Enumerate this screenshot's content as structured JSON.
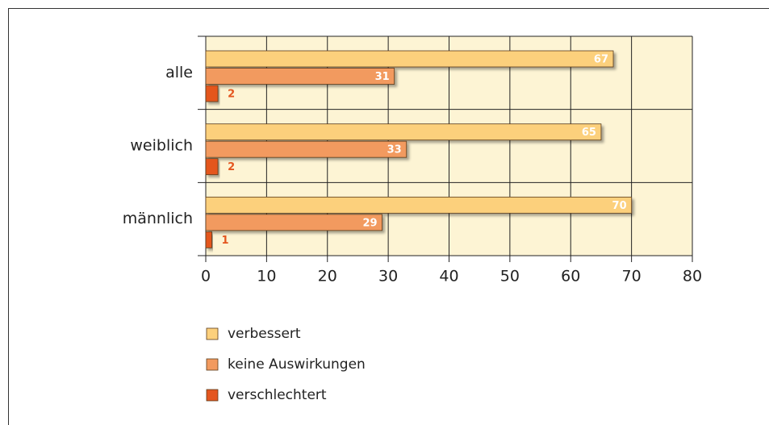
{
  "chart_data": {
    "type": "bar",
    "orientation": "horizontal",
    "categories": [
      "alle",
      "weiblich",
      "männlich"
    ],
    "series": [
      {
        "name": "verbessert",
        "color": "#fcd07c",
        "values": [
          67,
          65,
          70
        ]
      },
      {
        "name": "keine Auswirkungen",
        "color": "#f29a5f",
        "values": [
          31,
          33,
          29
        ]
      },
      {
        "name": "verschlechtert",
        "color": "#e4561f",
        "values": [
          2,
          2,
          1
        ]
      }
    ],
    "xlim": [
      0,
      80
    ],
    "xticks": [
      0,
      10,
      20,
      30,
      40,
      50,
      60,
      70,
      80
    ],
    "grid": true,
    "plot_background": "#fdf4d4",
    "legend": "bottom"
  }
}
